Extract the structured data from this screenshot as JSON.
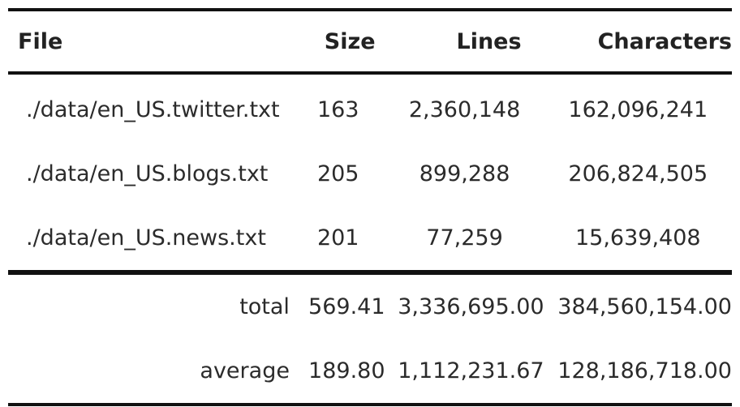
{
  "table": {
    "headers": {
      "file": "File",
      "size": "Size",
      "lines": "Lines",
      "characters": "Characters"
    },
    "rows": [
      {
        "file": "./data/en_US.twitter.txt",
        "size": "163",
        "lines": "2,360,148",
        "characters": "162,096,241"
      },
      {
        "file": "./data/en_US.blogs.txt",
        "size": "205",
        "lines": "899,288",
        "characters": "206,824,505"
      },
      {
        "file": "./data/en_US.news.txt",
        "size": "201",
        "lines": "77,259",
        "characters": "15,639,408"
      }
    ],
    "summary": [
      {
        "label": "total",
        "size": "569.41",
        "lines": "3,336,695.00",
        "characters": "384,560,154.00"
      },
      {
        "label": "average",
        "size": "189.80",
        "lines": "1,112,231.67",
        "characters": "128,186,718.00"
      }
    ]
  }
}
